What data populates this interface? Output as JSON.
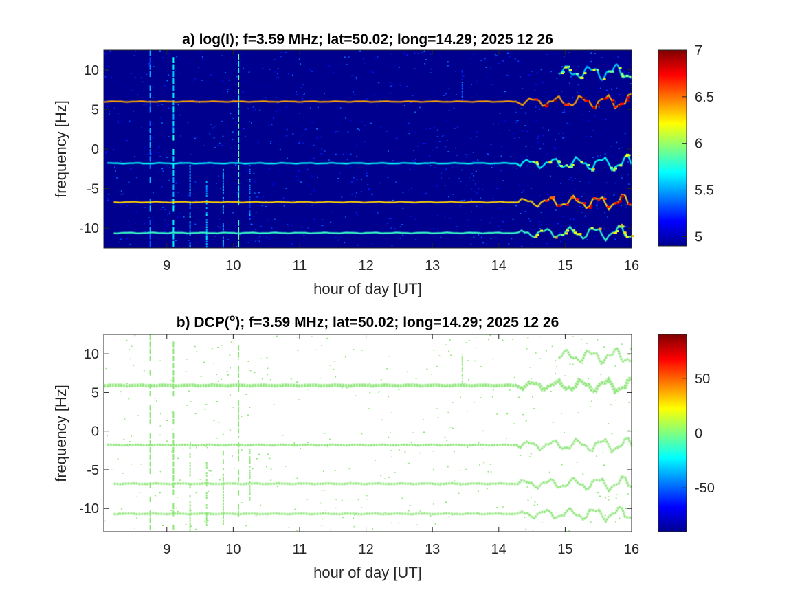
{
  "chart_data": [
    {
      "type": "heatmap",
      "title": "a) log(I); f=3.59 MHz;  lat=50.02; long=14.29; 2025 12 26",
      "xlabel": "hour of day [UT]",
      "ylabel": "frequency [Hz]",
      "xlim": [
        8.05,
        16.0
      ],
      "ylim": [
        -12.5,
        12.5
      ],
      "xticks": [
        9,
        10,
        11,
        12,
        13,
        14,
        15,
        16
      ],
      "yticks": [
        10,
        5,
        0,
        -5,
        -10
      ],
      "background_value": 5.0,
      "colorbar": {
        "colormap": "jet",
        "range": [
          4.9,
          7.0
        ],
        "ticks": [
          7,
          6.5,
          6,
          5.5,
          5
        ]
      },
      "traces": [
        {
          "freq": 6.0,
          "start": 8.05,
          "end": 16.0,
          "value": 6.4
        },
        {
          "freq": -1.8,
          "start": 8.1,
          "end": 16.0,
          "value": 5.7
        },
        {
          "freq": -6.7,
          "start": 8.2,
          "end": 16.0,
          "value": 6.3
        },
        {
          "freq": -10.6,
          "start": 8.2,
          "end": 16.0,
          "value": 5.8
        },
        {
          "freq": 9.7,
          "start": 14.9,
          "end": 16.0,
          "value": 5.6
        }
      ],
      "bursts": [
        {
          "hour": 8.75,
          "f_lo": -12.5,
          "f_hi": 12.5,
          "value": 5.4
        },
        {
          "hour": 9.1,
          "f_lo": -12.5,
          "f_hi": 12.5,
          "value": 5.6
        },
        {
          "hour": 9.35,
          "f_lo": -12.5,
          "f_hi": -2.0,
          "value": 5.5
        },
        {
          "hour": 9.6,
          "f_lo": -12.5,
          "f_hi": -4.0,
          "value": 5.5
        },
        {
          "hour": 9.85,
          "f_lo": -12.5,
          "f_hi": -2.5,
          "value": 5.5
        },
        {
          "hour": 10.08,
          "f_lo": -12.5,
          "f_hi": 12.0,
          "value": 5.8
        },
        {
          "hour": 10.25,
          "f_lo": -9.0,
          "f_hi": -2.0,
          "value": 5.4
        },
        {
          "hour": 13.45,
          "f_lo": 6.0,
          "f_hi": 10.0,
          "value": 5.3
        }
      ]
    },
    {
      "type": "heatmap",
      "title_prefix": "b) DCP(",
      "title_superscript": "o",
      "title_suffix": "); f=3.59 MHz;  lat=50.02; long=14.29; 2025 12 26",
      "xlabel": "hour of day [UT]",
      "ylabel": "frequency [Hz]",
      "xlim": [
        8.05,
        16.0
      ],
      "ylim": [
        -13.0,
        12.5
      ],
      "xticks": [
        9,
        10,
        11,
        12,
        13,
        14,
        15,
        16
      ],
      "yticks": [
        10,
        5,
        0,
        -5,
        -10
      ],
      "background": "#ffffff",
      "trace_color": "#8fe67a",
      "colorbar": {
        "colormap": "jet",
        "range": [
          -90,
          90
        ],
        "ticks": [
          50,
          0,
          -50
        ]
      },
      "traces": [
        {
          "freq": 5.9,
          "start": 8.05,
          "end": 16.0
        },
        {
          "freq": -1.8,
          "start": 8.1,
          "end": 16.0
        },
        {
          "freq": -6.8,
          "start": 8.2,
          "end": 16.0
        },
        {
          "freq": -10.7,
          "start": 8.2,
          "end": 16.0
        },
        {
          "freq": 9.7,
          "start": 14.9,
          "end": 16.0
        }
      ],
      "bursts": [
        {
          "hour": 8.75,
          "f_lo": -13.0,
          "f_hi": 12.5
        },
        {
          "hour": 9.1,
          "f_lo": -13.0,
          "f_hi": 12.5
        },
        {
          "hour": 9.35,
          "f_lo": -13.0,
          "f_hi": -2.0
        },
        {
          "hour": 9.6,
          "f_lo": -13.0,
          "f_hi": -4.0
        },
        {
          "hour": 9.85,
          "f_lo": -13.0,
          "f_hi": -2.5
        },
        {
          "hour": 10.08,
          "f_lo": -13.0,
          "f_hi": 12.0
        },
        {
          "hour": 10.25,
          "f_lo": -9.0,
          "f_hi": -2.0
        },
        {
          "hour": 13.45,
          "f_lo": 6.0,
          "f_hi": 10.0
        }
      ]
    }
  ]
}
